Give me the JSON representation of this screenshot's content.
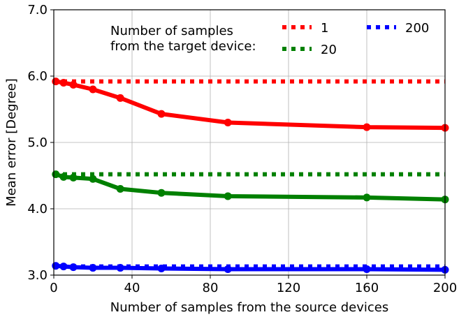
{
  "chart_data": {
    "type": "line",
    "title": "",
    "xlabel": "Number of samples from the source devices",
    "ylabel": "Mean error [Degree]",
    "xlim": [
      0,
      200
    ],
    "ylim": [
      3.0,
      7.0
    ],
    "xticks": [
      "0",
      "40",
      "80",
      "120",
      "160",
      "200"
    ],
    "yticks": [
      "3.0",
      "4.0",
      "5.0",
      "6.0",
      "7.0"
    ],
    "grid": true,
    "legend_title": [
      "Number of samples",
      "from the target device:"
    ],
    "legend_position": "top-right",
    "x": [
      1,
      5,
      10,
      20,
      34,
      55,
      89,
      160,
      200
    ],
    "series": [
      {
        "name": "1",
        "color": "#ff0000",
        "values": [
          5.92,
          5.9,
          5.87,
          5.8,
          5.67,
          5.43,
          5.3,
          5.23,
          5.22
        ],
        "baseline": 5.92
      },
      {
        "name": "20",
        "color": "#008000",
        "values": [
          4.52,
          4.48,
          4.47,
          4.45,
          4.3,
          4.24,
          4.19,
          4.17,
          4.14
        ],
        "baseline": 4.52
      },
      {
        "name": "200",
        "color": "#0000ff",
        "values": [
          3.14,
          3.13,
          3.12,
          3.11,
          3.11,
          3.1,
          3.09,
          3.09,
          3.08
        ],
        "baseline": 3.13
      }
    ]
  }
}
